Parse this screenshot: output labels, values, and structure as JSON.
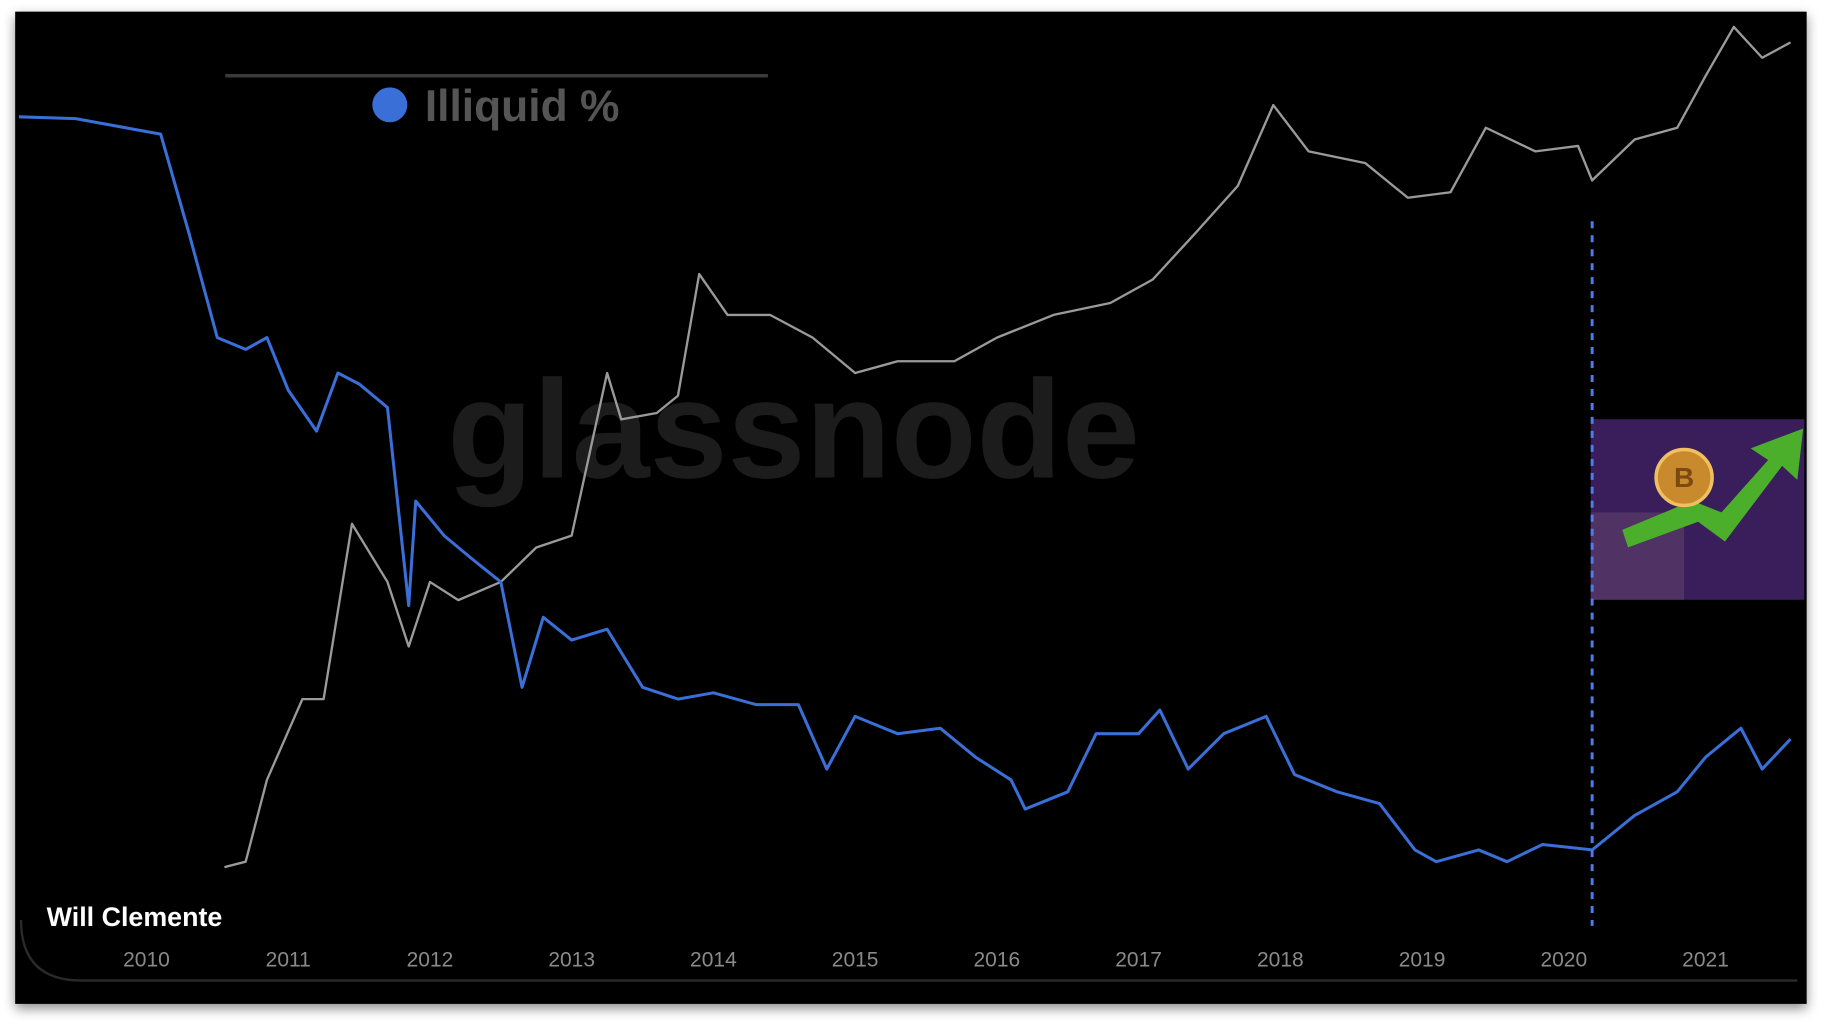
{
  "chart_data": {
    "type": "line",
    "watermark": "glassnode",
    "author": "Will Clemente",
    "xlim": [
      2009.09,
      2021.59
    ],
    "xticks": [
      2010,
      2011,
      2012,
      2013,
      2014,
      2015,
      2016,
      2017,
      2018,
      2019,
      2020,
      2021
    ],
    "ylim": [
      0,
      100
    ],
    "grid": false,
    "legend": "top",
    "vline": {
      "x": 2020.2,
      "color": "#4a7ef0"
    },
    "series": [
      {
        "name": "Illiquid %",
        "color": "#3a6fd8",
        "x": [
          2009.1,
          2009.5,
          2010.1,
          2010.3,
          2010.5,
          2010.7,
          2010.85,
          2011.0,
          2011.2,
          2011.35,
          2011.5,
          2011.7,
          2011.85,
          2011.9,
          2012.1,
          2012.3,
          2012.5,
          2012.65,
          2012.8,
          2013.0,
          2013.25,
          2013.5,
          2013.75,
          2014.0,
          2014.3,
          2014.6,
          2014.8,
          2015.0,
          2015.3,
          2015.6,
          2015.85,
          2016.1,
          2016.2,
          2016.5,
          2016.7,
          2017.0,
          2017.15,
          2017.35,
          2017.6,
          2017.9,
          2018.1,
          2018.4,
          2018.7,
          2018.95,
          2019.1,
          2019.4,
          2019.6,
          2019.85,
          2020.2,
          2020.5,
          2020.8,
          2021.0,
          2021.25,
          2021.4,
          2021.6
        ],
        "values": [
          89.7,
          89.5,
          87.8,
          76.9,
          65.4,
          64.1,
          65.4,
          59.6,
          55.1,
          61.5,
          60.3,
          57.7,
          35.9,
          47.4,
          43.6,
          41.0,
          38.5,
          26.9,
          34.6,
          32.1,
          33.3,
          26.9,
          25.6,
          26.3,
          25.0,
          25.0,
          17.9,
          23.7,
          21.8,
          22.4,
          19.2,
          16.7,
          13.5,
          15.4,
          21.8,
          21.8,
          24.4,
          17.9,
          21.8,
          23.7,
          17.3,
          15.4,
          14.1,
          9.0,
          7.7,
          9.0,
          7.7,
          9.6,
          9.0,
          12.8,
          15.4,
          19.2,
          22.4,
          17.9,
          21.2
        ]
      },
      {
        "color": "#9a9a9a",
        "x": [
          2010.55,
          2010.7,
          2010.85,
          2011.1,
          2011.25,
          2011.45,
          2011.7,
          2011.85,
          2012.0,
          2012.2,
          2012.5,
          2012.75,
          2013.0,
          2013.25,
          2013.35,
          2013.6,
          2013.75,
          2013.9,
          2014.1,
          2014.4,
          2014.7,
          2015.0,
          2015.3,
          2015.7,
          2016.0,
          2016.4,
          2016.8,
          2017.1,
          2017.4,
          2017.7,
          2017.95,
          2018.2,
          2018.6,
          2018.9,
          2019.2,
          2019.45,
          2019.8,
          2020.1,
          2020.2,
          2020.5,
          2020.8,
          2021.0,
          2021.2,
          2021.4,
          2021.6
        ],
        "values": [
          7.1,
          7.7,
          16.7,
          25.6,
          25.6,
          44.9,
          38.5,
          31.4,
          38.5,
          36.5,
          38.5,
          42.3,
          43.6,
          61.5,
          56.4,
          57.1,
          59.0,
          72.4,
          67.9,
          67.9,
          65.4,
          61.5,
          62.8,
          62.8,
          65.4,
          67.9,
          69.2,
          71.8,
          76.9,
          82.1,
          91.0,
          85.9,
          84.6,
          80.8,
          81.4,
          88.5,
          85.9,
          86.5,
          82.7,
          87.2,
          88.5,
          94.2,
          99.6,
          96.2,
          97.9
        ]
      }
    ]
  }
}
